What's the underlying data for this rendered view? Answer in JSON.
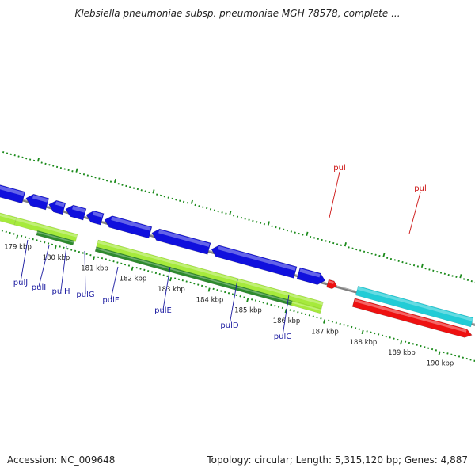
{
  "title": "Klebsiella pneumoniae subsp. pneumoniae MGH 78578, complete ...",
  "footer": {
    "accession": "Accession: NC_009648",
    "summary": "Topology: circular; Length: 5,315,120 bp; Genes: 4,887"
  },
  "colors": {
    "forward_gene": "#1010dd",
    "reverse_gene": "#1010dd",
    "cds_light": "#a6ea3c",
    "cds_dark": "#2e8a2e",
    "trna_red": "#ee1111",
    "rrna_cyan": "#22ccd6",
    "backbone": "#808080",
    "tick_green": "#1a8a1a",
    "label_blue": "#1a1aa0",
    "label_red": "#cc1111"
  },
  "ruler": {
    "unit": "kbp",
    "ticks": [
      {
        "label": "179 kbp",
        "kbp": 179
      },
      {
        "label": "180 kbp",
        "kbp": 180
      },
      {
        "label": "181 kbp",
        "kbp": 181
      },
      {
        "label": "182 kbp",
        "kbp": 182
      },
      {
        "label": "183 kbp",
        "kbp": 183
      },
      {
        "label": "184 kbp",
        "kbp": 184
      },
      {
        "label": "185 kbp",
        "kbp": 185
      },
      {
        "label": "186 kbp",
        "kbp": 186
      },
      {
        "label": "187 kbp",
        "kbp": 187
      },
      {
        "label": "188 kbp",
        "kbp": 188
      },
      {
        "label": "189 kbp",
        "kbp": 189
      },
      {
        "label": "190 kbp",
        "kbp": 190
      }
    ]
  },
  "gene_labels": [
    {
      "name": "pulJ",
      "color": "blue"
    },
    {
      "name": "pulI",
      "color": "blue"
    },
    {
      "name": "pulH",
      "color": "blue"
    },
    {
      "name": "pulG",
      "color": "blue"
    },
    {
      "name": "pulF",
      "color": "blue"
    },
    {
      "name": "pulE",
      "color": "blue"
    },
    {
      "name": "pulD",
      "color": "blue"
    },
    {
      "name": "pulC",
      "color": "blue"
    },
    {
      "name": "pul",
      "color": "red"
    },
    {
      "name": "pul",
      "color": "red"
    }
  ]
}
